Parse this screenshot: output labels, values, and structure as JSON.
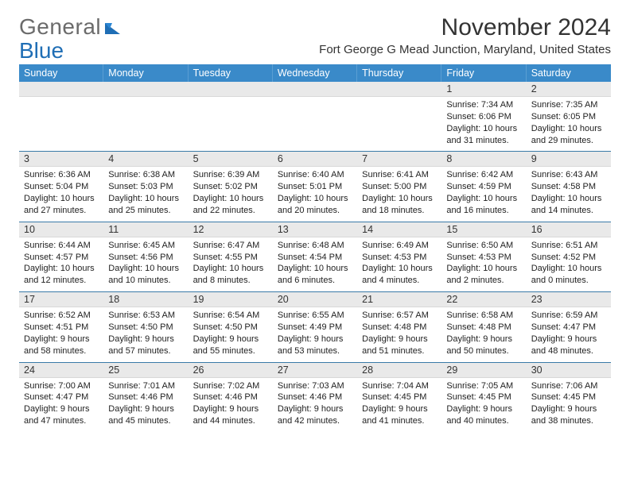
{
  "brand": {
    "part1": "General",
    "part2": "Blue"
  },
  "title": "November 2024",
  "location": "Fort George G Mead Junction, Maryland, United States",
  "colors": {
    "header_bg": "#3a8ac9",
    "header_border": "#5a9ed3",
    "row_divider": "#3a7aa8",
    "date_bg": "#e9e9e9",
    "brand_grey": "#6b6b6b",
    "brand_blue": "#1f6eb5"
  },
  "day_names": [
    "Sunday",
    "Monday",
    "Tuesday",
    "Wednesday",
    "Thursday",
    "Friday",
    "Saturday"
  ],
  "weeks": [
    [
      {
        "date": "",
        "sunrise": "",
        "sunset": "",
        "daylight": ""
      },
      {
        "date": "",
        "sunrise": "",
        "sunset": "",
        "daylight": ""
      },
      {
        "date": "",
        "sunrise": "",
        "sunset": "",
        "daylight": ""
      },
      {
        "date": "",
        "sunrise": "",
        "sunset": "",
        "daylight": ""
      },
      {
        "date": "",
        "sunrise": "",
        "sunset": "",
        "daylight": ""
      },
      {
        "date": "1",
        "sunrise": "Sunrise: 7:34 AM",
        "sunset": "Sunset: 6:06 PM",
        "daylight": "Daylight: 10 hours and 31 minutes."
      },
      {
        "date": "2",
        "sunrise": "Sunrise: 7:35 AM",
        "sunset": "Sunset: 6:05 PM",
        "daylight": "Daylight: 10 hours and 29 minutes."
      }
    ],
    [
      {
        "date": "3",
        "sunrise": "Sunrise: 6:36 AM",
        "sunset": "Sunset: 5:04 PM",
        "daylight": "Daylight: 10 hours and 27 minutes."
      },
      {
        "date": "4",
        "sunrise": "Sunrise: 6:38 AM",
        "sunset": "Sunset: 5:03 PM",
        "daylight": "Daylight: 10 hours and 25 minutes."
      },
      {
        "date": "5",
        "sunrise": "Sunrise: 6:39 AM",
        "sunset": "Sunset: 5:02 PM",
        "daylight": "Daylight: 10 hours and 22 minutes."
      },
      {
        "date": "6",
        "sunrise": "Sunrise: 6:40 AM",
        "sunset": "Sunset: 5:01 PM",
        "daylight": "Daylight: 10 hours and 20 minutes."
      },
      {
        "date": "7",
        "sunrise": "Sunrise: 6:41 AM",
        "sunset": "Sunset: 5:00 PM",
        "daylight": "Daylight: 10 hours and 18 minutes."
      },
      {
        "date": "8",
        "sunrise": "Sunrise: 6:42 AM",
        "sunset": "Sunset: 4:59 PM",
        "daylight": "Daylight: 10 hours and 16 minutes."
      },
      {
        "date": "9",
        "sunrise": "Sunrise: 6:43 AM",
        "sunset": "Sunset: 4:58 PM",
        "daylight": "Daylight: 10 hours and 14 minutes."
      }
    ],
    [
      {
        "date": "10",
        "sunrise": "Sunrise: 6:44 AM",
        "sunset": "Sunset: 4:57 PM",
        "daylight": "Daylight: 10 hours and 12 minutes."
      },
      {
        "date": "11",
        "sunrise": "Sunrise: 6:45 AM",
        "sunset": "Sunset: 4:56 PM",
        "daylight": "Daylight: 10 hours and 10 minutes."
      },
      {
        "date": "12",
        "sunrise": "Sunrise: 6:47 AM",
        "sunset": "Sunset: 4:55 PM",
        "daylight": "Daylight: 10 hours and 8 minutes."
      },
      {
        "date": "13",
        "sunrise": "Sunrise: 6:48 AM",
        "sunset": "Sunset: 4:54 PM",
        "daylight": "Daylight: 10 hours and 6 minutes."
      },
      {
        "date": "14",
        "sunrise": "Sunrise: 6:49 AM",
        "sunset": "Sunset: 4:53 PM",
        "daylight": "Daylight: 10 hours and 4 minutes."
      },
      {
        "date": "15",
        "sunrise": "Sunrise: 6:50 AM",
        "sunset": "Sunset: 4:53 PM",
        "daylight": "Daylight: 10 hours and 2 minutes."
      },
      {
        "date": "16",
        "sunrise": "Sunrise: 6:51 AM",
        "sunset": "Sunset: 4:52 PM",
        "daylight": "Daylight: 10 hours and 0 minutes."
      }
    ],
    [
      {
        "date": "17",
        "sunrise": "Sunrise: 6:52 AM",
        "sunset": "Sunset: 4:51 PM",
        "daylight": "Daylight: 9 hours and 58 minutes."
      },
      {
        "date": "18",
        "sunrise": "Sunrise: 6:53 AM",
        "sunset": "Sunset: 4:50 PM",
        "daylight": "Daylight: 9 hours and 57 minutes."
      },
      {
        "date": "19",
        "sunrise": "Sunrise: 6:54 AM",
        "sunset": "Sunset: 4:50 PM",
        "daylight": "Daylight: 9 hours and 55 minutes."
      },
      {
        "date": "20",
        "sunrise": "Sunrise: 6:55 AM",
        "sunset": "Sunset: 4:49 PM",
        "daylight": "Daylight: 9 hours and 53 minutes."
      },
      {
        "date": "21",
        "sunrise": "Sunrise: 6:57 AM",
        "sunset": "Sunset: 4:48 PM",
        "daylight": "Daylight: 9 hours and 51 minutes."
      },
      {
        "date": "22",
        "sunrise": "Sunrise: 6:58 AM",
        "sunset": "Sunset: 4:48 PM",
        "daylight": "Daylight: 9 hours and 50 minutes."
      },
      {
        "date": "23",
        "sunrise": "Sunrise: 6:59 AM",
        "sunset": "Sunset: 4:47 PM",
        "daylight": "Daylight: 9 hours and 48 minutes."
      }
    ],
    [
      {
        "date": "24",
        "sunrise": "Sunrise: 7:00 AM",
        "sunset": "Sunset: 4:47 PM",
        "daylight": "Daylight: 9 hours and 47 minutes."
      },
      {
        "date": "25",
        "sunrise": "Sunrise: 7:01 AM",
        "sunset": "Sunset: 4:46 PM",
        "daylight": "Daylight: 9 hours and 45 minutes."
      },
      {
        "date": "26",
        "sunrise": "Sunrise: 7:02 AM",
        "sunset": "Sunset: 4:46 PM",
        "daylight": "Daylight: 9 hours and 44 minutes."
      },
      {
        "date": "27",
        "sunrise": "Sunrise: 7:03 AM",
        "sunset": "Sunset: 4:46 PM",
        "daylight": "Daylight: 9 hours and 42 minutes."
      },
      {
        "date": "28",
        "sunrise": "Sunrise: 7:04 AM",
        "sunset": "Sunset: 4:45 PM",
        "daylight": "Daylight: 9 hours and 41 minutes."
      },
      {
        "date": "29",
        "sunrise": "Sunrise: 7:05 AM",
        "sunset": "Sunset: 4:45 PM",
        "daylight": "Daylight: 9 hours and 40 minutes."
      },
      {
        "date": "30",
        "sunrise": "Sunrise: 7:06 AM",
        "sunset": "Sunset: 4:45 PM",
        "daylight": "Daylight: 9 hours and 38 minutes."
      }
    ]
  ]
}
